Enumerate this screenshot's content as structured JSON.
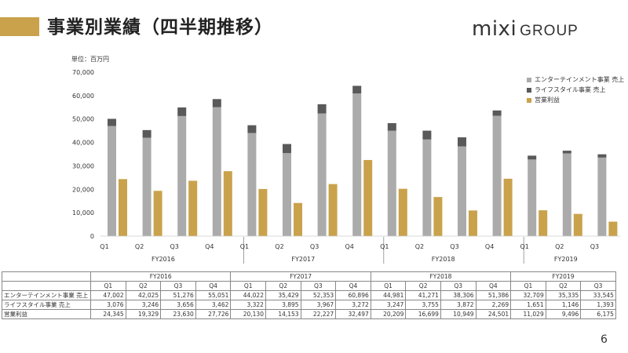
{
  "header": {
    "title": "事業別業績（四半期推移）",
    "logo_mixi": "mixi",
    "logo_group": "GROUP",
    "accent_color": "#c9a24b"
  },
  "unit_label": "単位：百万円",
  "page_number": "6",
  "chart_data": {
    "type": "bar",
    "stacked_series": [
      "エンターテインメント事業 売上",
      "ライフスタイル事業 売上"
    ],
    "groups": [
      {
        "fy": "FY2016",
        "quarters": [
          "Q1",
          "Q2",
          "Q3",
          "Q4"
        ]
      },
      {
        "fy": "FY2017",
        "quarters": [
          "Q1",
          "Q2",
          "Q3",
          "Q4"
        ]
      },
      {
        "fy": "FY2018",
        "quarters": [
          "Q1",
          "Q2",
          "Q3",
          "Q4"
        ]
      },
      {
        "fy": "FY2019",
        "quarters": [
          "Q1",
          "Q2",
          "Q3"
        ]
      }
    ],
    "series": [
      {
        "name": "エンターテインメント事業 売上",
        "color": "#ababab",
        "values": [
          47002,
          42025,
          51276,
          55051,
          44022,
          35429,
          52353,
          60896,
          44981,
          41271,
          38306,
          51386,
          32709,
          35335,
          33545
        ],
        "display": [
          "47,002",
          "42,025",
          "51,276",
          "55,051",
          "44,022",
          "35,429",
          "52,353",
          "60,896",
          "44,981",
          "41,271",
          "38,306",
          "51,386",
          "32,709",
          "35,335",
          "33,545"
        ]
      },
      {
        "name": "ライフスタイル事業 売上",
        "color": "#595959",
        "values": [
          3076,
          3246,
          3656,
          3462,
          3322,
          3895,
          3967,
          3272,
          3247,
          3755,
          3872,
          2269,
          1651,
          1146,
          1393
        ],
        "display": [
          "3,076",
          "3,246",
          "3,656",
          "3,462",
          "3,322",
          "3,895",
          "3,967",
          "3,272",
          "3,247",
          "3,755",
          "3,872",
          "2,269",
          "1,651",
          "1,146",
          "1,393"
        ]
      },
      {
        "name": "営業利益",
        "color": "#c9a24b",
        "values": [
          24345,
          19329,
          23630,
          27726,
          20130,
          14153,
          22227,
          32497,
          20209,
          16699,
          10949,
          24501,
          11029,
          9496,
          6175
        ],
        "display": [
          "24,345",
          "19,329",
          "23,630",
          "27,726",
          "20,130",
          "14,153",
          "22,227",
          "32,497",
          "20,209",
          "16,699",
          "10,949",
          "24,501",
          "11,029",
          "9,496",
          "6,175"
        ]
      }
    ],
    "y_ticks": [
      "70,000",
      "60,000",
      "50,000",
      "40,000",
      "30,000",
      "20,000",
      "10,000",
      "0"
    ],
    "ylim": [
      0,
      70000
    ]
  },
  "table": {
    "row_labels": [
      "エンターテインメント事業 売上",
      "ライフスタイル事業 売上",
      "営業利益"
    ]
  }
}
